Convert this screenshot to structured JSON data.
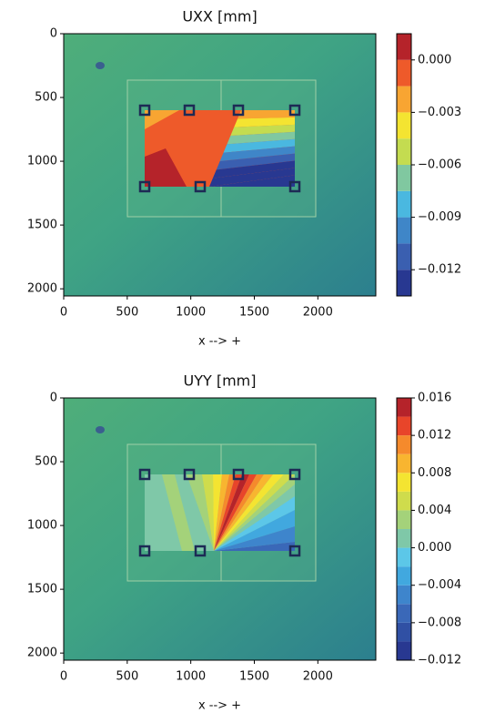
{
  "chart_data": [
    {
      "type": "contour",
      "title": "UXX [mm]",
      "xlabel": "x --> +",
      "xlim": [
        0,
        2456
      ],
      "ylim": [
        2056,
        0
      ],
      "xticks": [
        0,
        500,
        1000,
        1500,
        2000
      ],
      "yticks": [
        0,
        500,
        1000,
        1500,
        2000
      ],
      "levels": [
        -0.0135,
        -0.012,
        -0.0105,
        -0.009,
        -0.0075,
        -0.006,
        -0.0045,
        -0.003,
        -0.0015,
        0,
        0.0015
      ],
      "colors": [
        "#283891",
        "#3a5fb0",
        "#3f86c8",
        "#4ab8e0",
        "#80c8a0",
        "#c4dc50",
        "#f4e431",
        "#f8a532",
        "#ee5a2a",
        "#b5232a"
      ],
      "colorbar_ticks": [
        {
          "value": 0,
          "label": "0.000"
        },
        {
          "value": -0.003,
          "label": "−0.003"
        },
        {
          "value": -0.006,
          "label": "−0.006"
        },
        {
          "value": -0.009,
          "label": "−0.009"
        },
        {
          "value": -0.012,
          "label": "−0.012"
        }
      ]
    },
    {
      "type": "contour",
      "title": "UYY [mm]",
      "xlabel": "x --> +",
      "xlim": [
        0,
        2456
      ],
      "ylim": [
        2056,
        0
      ],
      "xticks": [
        0,
        500,
        1000,
        1500,
        2000
      ],
      "yticks": [
        0,
        500,
        1000,
        1500,
        2000
      ],
      "levels": [
        -0.012,
        -0.01,
        -0.008,
        -0.006,
        -0.004,
        -0.002,
        0,
        0.002,
        0.004,
        0.006,
        0.008,
        0.01,
        0.012,
        0.014,
        0.016
      ],
      "colors": [
        "#283891",
        "#3050a4",
        "#3a68b8",
        "#3e85cc",
        "#41a8df",
        "#5cc7e8",
        "#7fc8a8",
        "#a4d27a",
        "#cfdc4c",
        "#f4e431",
        "#f8b530",
        "#f58a2c",
        "#e8452a",
        "#b5232a"
      ],
      "colorbar_ticks": [
        0.016,
        0.012,
        0.008,
        0.004,
        {
          "value": 0,
          "label": "0.000"
        },
        {
          "value": -0.004,
          "label": "−0.004"
        },
        {
          "value": -0.008,
          "label": "−0.008"
        },
        {
          "value": -0.012,
          "label": "−0.012"
        }
      ]
    }
  ]
}
